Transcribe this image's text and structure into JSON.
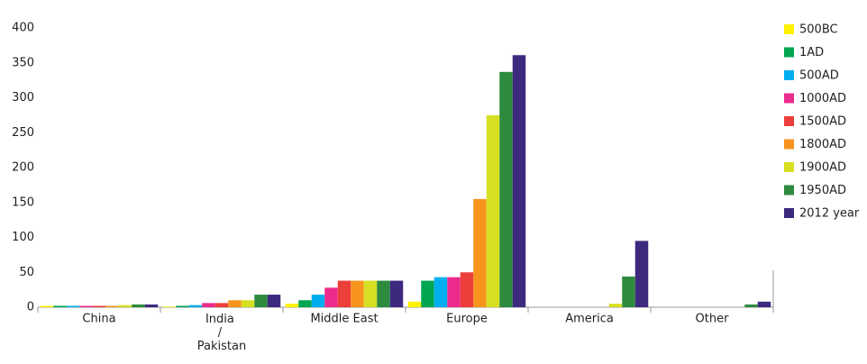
{
  "chart_data": {
    "type": "bar",
    "categories": [
      "China",
      "India / Pakistan",
      "Middle East",
      "Europe",
      "America",
      "Other"
    ],
    "series": [
      {
        "name": "500BC",
        "color": "#fff200",
        "values": [
          2,
          1,
          5,
          8,
          0,
          0
        ]
      },
      {
        "name": "1AD",
        "color": "#00a651",
        "values": [
          2,
          2,
          10,
          38,
          0,
          0
        ]
      },
      {
        "name": "500AD",
        "color": "#00aeef",
        "values": [
          2,
          3,
          18,
          43,
          0,
          0
        ]
      },
      {
        "name": "1000AD",
        "color": "#ec2b8c",
        "values": [
          2,
          6,
          28,
          43,
          0,
          0
        ]
      },
      {
        "name": "1500AD",
        "color": "#ed3f3a",
        "values": [
          2,
          6,
          38,
          50,
          0,
          0
        ]
      },
      {
        "name": "1800AD",
        "color": "#f7941d",
        "values": [
          2,
          10,
          38,
          155,
          0,
          0
        ]
      },
      {
        "name": "1900AD",
        "color": "#d7df23",
        "values": [
          3,
          10,
          38,
          275,
          5,
          0
        ]
      },
      {
        "name": "1950AD",
        "color": "#2e8b3e",
        "values": [
          4,
          18,
          38,
          337,
          44,
          4
        ]
      },
      {
        "name": "2012 year",
        "color": "#3d2a7f",
        "values": [
          4,
          18,
          38,
          361,
          95,
          8
        ]
      }
    ],
    "ylim": [
      0,
      400
    ],
    "yticks": [
      0,
      50,
      100,
      150,
      200,
      250,
      300,
      350,
      400
    ],
    "grid": false,
    "legend": "right"
  }
}
